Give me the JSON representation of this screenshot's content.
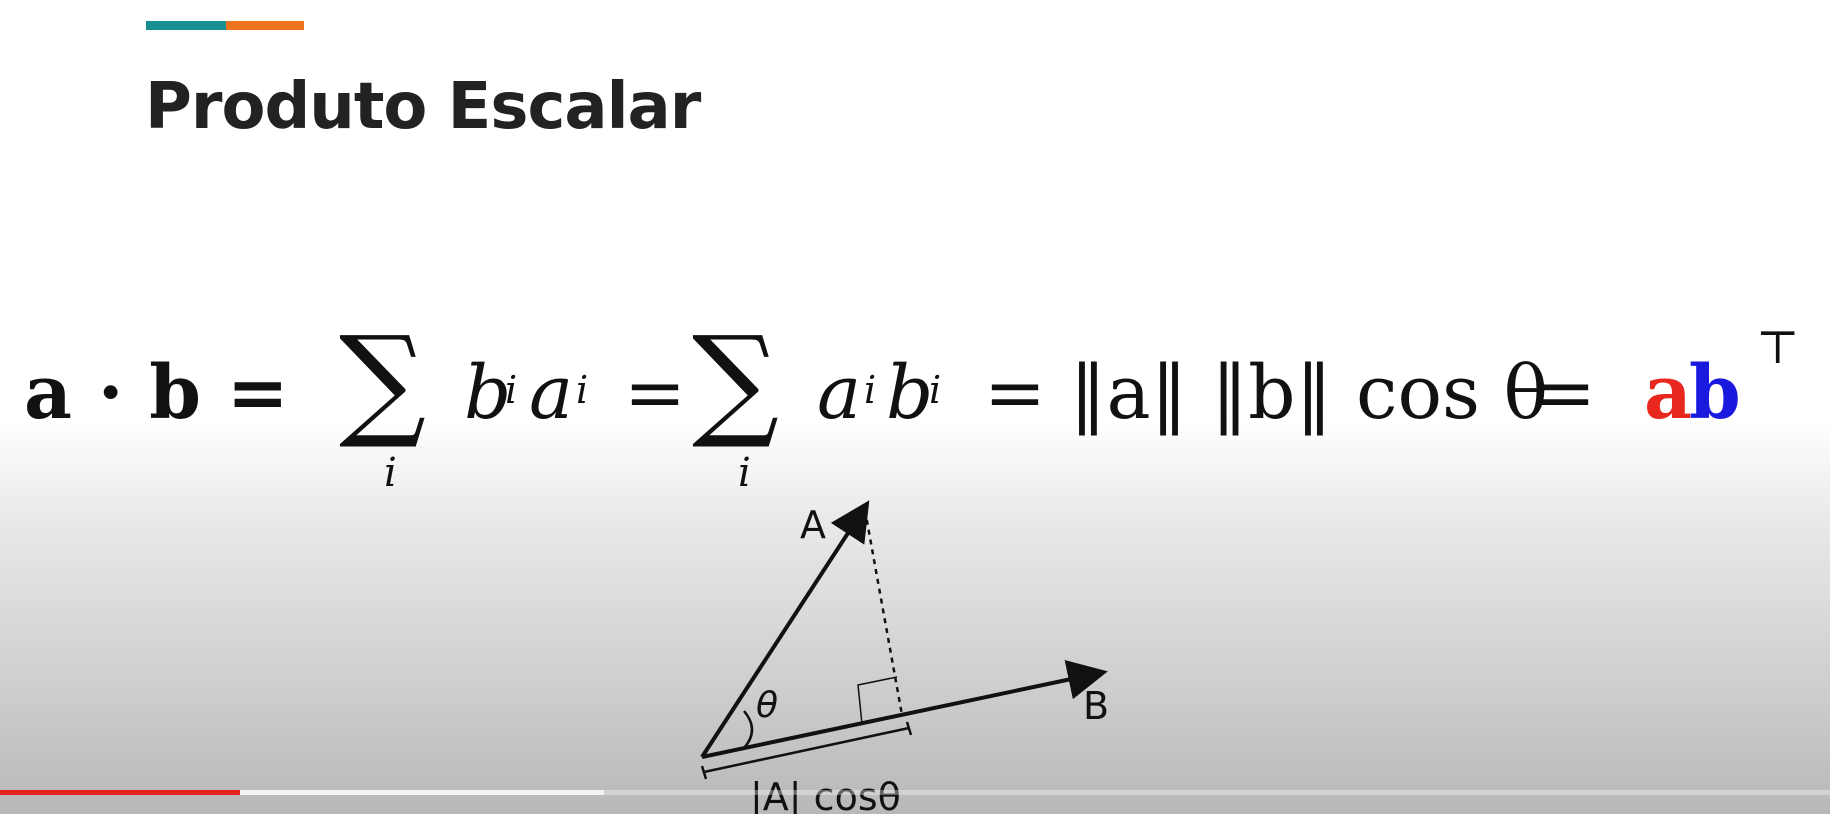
{
  "slide": {
    "title": "Produto Escalar",
    "accent_colors": [
      "#168f91",
      "#f0731f"
    ]
  },
  "formula": {
    "lhs": "a · b =",
    "sum_symbol": "∑",
    "sum_index": "i",
    "term1_b": "b",
    "term1_a": "a",
    "sub_i": "i",
    "eq": "=",
    "term2_a": "a",
    "term2_b": "b",
    "norm_expr": "= ‖a‖ ‖b‖ cos θ",
    "final_eq": "=",
    "final_a": "a",
    "final_b": "b",
    "transpose": "⊤",
    "colors": {
      "a": "#e8281e",
      "b": "#1a1adf"
    }
  },
  "diagram": {
    "label_a": "A",
    "label_b": "B",
    "angle": "θ",
    "projection": "|A| cosθ"
  },
  "player": {
    "progress_played": 0.131,
    "progress_buffered": 0.33,
    "progress_color": "#e52420"
  }
}
